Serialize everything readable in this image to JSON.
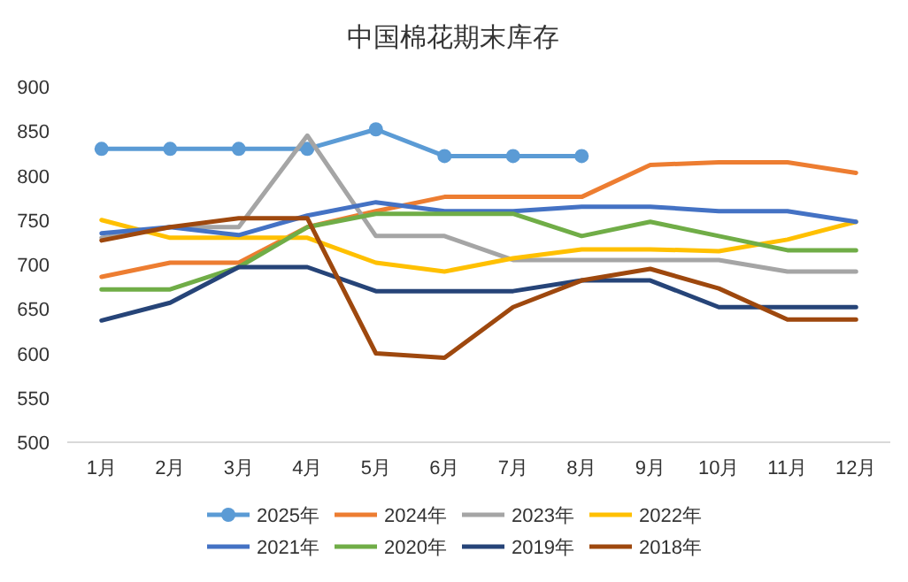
{
  "chart_data": {
    "type": "line",
    "title": "中国棉花期末库存",
    "categories": [
      "1月",
      "2月",
      "3月",
      "4月",
      "5月",
      "6月",
      "7月",
      "8月",
      "9月",
      "10月",
      "11月",
      "12月"
    ],
    "ylim": [
      500,
      900
    ],
    "yticks": [
      500,
      550,
      600,
      650,
      700,
      750,
      800,
      850,
      900
    ],
    "grid": false,
    "legend": "bottom",
    "series": [
      {
        "name": "2025年",
        "color": "#5b9bd5",
        "marker": "circle",
        "values": [
          830,
          830,
          830,
          830,
          852,
          822,
          822,
          822,
          null,
          null,
          null,
          null
        ]
      },
      {
        "name": "2024年",
        "color": "#ed7d31",
        "values": [
          686,
          702,
          702,
          742,
          760,
          776,
          776,
          776,
          812,
          815,
          815,
          803
        ]
      },
      {
        "name": "2023年",
        "color": "#a5a5a5",
        "values": [
          730,
          742,
          742,
          845,
          732,
          732,
          705,
          705,
          705,
          705,
          692,
          692
        ]
      },
      {
        "name": "2022年",
        "color": "#ffc000",
        "values": [
          750,
          730,
          730,
          730,
          702,
          692,
          707,
          717,
          717,
          715,
          728,
          748
        ]
      },
      {
        "name": "2021年",
        "color": "#4472c4",
        "values": [
          735,
          742,
          733,
          755,
          770,
          760,
          760,
          765,
          765,
          760,
          760,
          748
        ]
      },
      {
        "name": "2020年",
        "color": "#70ad47",
        "values": [
          672,
          672,
          697,
          742,
          757,
          757,
          757,
          732,
          748,
          732,
          716,
          716
        ]
      },
      {
        "name": "2019年",
        "color": "#264478",
        "values": [
          637,
          657,
          697,
          697,
          670,
          670,
          670,
          682,
          682,
          652,
          652,
          652
        ]
      },
      {
        "name": "2018年",
        "color": "#9e480e",
        "values": [
          727,
          742,
          752,
          752,
          600,
          595,
          652,
          682,
          695,
          673,
          638,
          638
        ]
      }
    ]
  }
}
